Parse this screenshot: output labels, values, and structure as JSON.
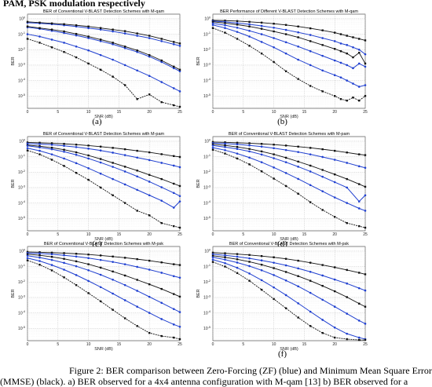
{
  "header": "PAM, PSK modulation respectively",
  "caption": {
    "line1": "Figure 2: BER comparison between Zero-Forcing (ZF) (blue) and Minimum Mean Square Error",
    "line2": "(MMSE) (black). a) BER observed for a 4x4 antenna configuration with M-qam [13] b) BER observed for a"
  },
  "colors": {
    "zf": "#1f3fd0",
    "mmse": "#111111",
    "grid": "#b8b8b8"
  },
  "chart_data": [
    {
      "type": "line",
      "panel_label": "(a)",
      "title": "BER of Conventional V-BLAST Detection Schemes with M-qam",
      "xlabel": "SNR (dB)",
      "ylabel": "BER",
      "x_ticks": [
        "0",
        "5",
        "10",
        "15",
        "20",
        "25"
      ],
      "y_ticks": [
        "10^0",
        "10^-1",
        "10^-2",
        "10^-3",
        "10^-4",
        "10^-5"
      ],
      "xlim": [
        0,
        25
      ],
      "ylim_log10": [
        -5.8,
        0.3
      ],
      "y_scale": "log",
      "grid": true,
      "x": [
        0,
        2,
        4,
        6,
        8,
        10,
        12,
        14,
        16,
        18,
        20,
        22,
        24,
        25
      ],
      "series": [
        {
          "color": "zf",
          "marker": "dot",
          "log10_values": [
            -0.25,
            -0.3,
            -0.35,
            -0.42,
            -0.5,
            -0.6,
            -0.7,
            -0.82,
            -0.95,
            -1.1,
            -1.25,
            -1.45,
            -1.65,
            -1.75
          ]
        },
        {
          "color": "mmse",
          "marker": "x",
          "log10_values": [
            -0.2,
            -0.25,
            -0.3,
            -0.35,
            -0.42,
            -0.5,
            -0.6,
            -0.7,
            -0.8,
            -0.95,
            -1.1,
            -1.3,
            -1.5,
            -1.6
          ]
        },
        {
          "color": "zf",
          "marker": "dot",
          "log10_values": [
            -0.55,
            -0.65,
            -0.78,
            -0.92,
            -1.08,
            -1.25,
            -1.45,
            -1.65,
            -1.9,
            -2.15,
            -2.45,
            -2.8,
            -3.2,
            -3.4
          ]
        },
        {
          "color": "mmse",
          "marker": "x",
          "log10_values": [
            -0.5,
            -0.6,
            -0.7,
            -0.82,
            -0.98,
            -1.15,
            -1.35,
            -1.55,
            -1.8,
            -2.05,
            -2.35,
            -2.7,
            -3.1,
            -3.3
          ]
        },
        {
          "color": "zf",
          "marker": "dot",
          "log10_values": [
            -1.0,
            -1.15,
            -1.35,
            -1.55,
            -1.8,
            -2.05,
            -2.35,
            -2.65,
            -3.0,
            -3.35,
            -3.7,
            -4.1,
            -4.5,
            -4.7
          ]
        },
        {
          "color": "mmse",
          "marker": "x",
          "log10_values": [
            -1.3,
            -1.55,
            -1.85,
            -2.15,
            -2.5,
            -2.9,
            -3.3,
            -3.75,
            -4.3,
            -5.2,
            -4.9,
            -5.4,
            -5.6,
            -5.7
          ]
        }
      ]
    },
    {
      "type": "line",
      "panel_label": "(b)",
      "title": "BER Performance of Different V-BLAST Detection Schemes with M-qam",
      "xlabel": "SNR (dB)",
      "ylabel": "BER",
      "x_ticks": [
        "0",
        "5",
        "10",
        "15",
        "20",
        "25"
      ],
      "y_ticks": [
        "10^0",
        "10^-1",
        "10^-2",
        "10^-3",
        "10^-4",
        "10^-5"
      ],
      "xlim": [
        0,
        25
      ],
      "ylim_log10": [
        -5.8,
        0.3
      ],
      "y_scale": "log",
      "grid": true,
      "x": [
        0,
        2,
        4,
        6,
        8,
        10,
        12,
        14,
        16,
        18,
        20,
        21,
        22,
        23,
        24,
        25
      ],
      "series": [
        {
          "color": "mmse",
          "marker": "x",
          "log10_values": [
            -0.1,
            -0.12,
            -0.15,
            -0.2,
            -0.25,
            -0.32,
            -0.4,
            -0.5,
            -0.62,
            -0.75,
            -0.9,
            -1.0,
            -1.1,
            -1.2,
            -1.3,
            -1.4
          ]
        },
        {
          "color": "zf",
          "marker": "dot",
          "log10_values": [
            -0.15,
            -0.2,
            -0.28,
            -0.36,
            -0.46,
            -0.58,
            -0.72,
            -0.88,
            -1.05,
            -1.25,
            -1.45,
            -1.6,
            -1.7,
            -1.85,
            -2.0,
            -2.3
          ]
        },
        {
          "color": "mmse",
          "marker": "x",
          "log10_values": [
            -0.2,
            -0.28,
            -0.38,
            -0.5,
            -0.65,
            -0.82,
            -1.0,
            -1.2,
            -1.45,
            -1.7,
            -1.95,
            -2.1,
            -2.25,
            -2.5,
            -2.2,
            -2.9
          ]
        },
        {
          "color": "zf",
          "marker": "dot",
          "log10_values": [
            -0.3,
            -0.42,
            -0.58,
            -0.78,
            -1.0,
            -1.25,
            -1.52,
            -1.8,
            -2.1,
            -2.4,
            -2.7,
            -2.85,
            -3.0,
            -3.2,
            -2.9,
            -3.1
          ]
        },
        {
          "color": "zf",
          "marker": "dot",
          "log10_values": [
            -0.4,
            -0.6,
            -0.85,
            -1.15,
            -1.5,
            -1.85,
            -2.25,
            -2.65,
            -3.0,
            -3.35,
            -3.65,
            -3.8,
            -4.0,
            -4.2,
            -4.4,
            -4.3
          ]
        },
        {
          "color": "mmse",
          "marker": "x",
          "log10_values": [
            -0.6,
            -0.9,
            -1.3,
            -1.75,
            -2.25,
            -2.8,
            -3.4,
            -3.9,
            -4.35,
            -4.7,
            -5.0,
            -5.2,
            -5.3,
            -5.1,
            -5.3,
            -5.0
          ]
        }
      ]
    },
    {
      "type": "line",
      "panel_label": "(c)",
      "title": "BER of Conventional V-BLAST Detection Schemes with M-pam",
      "xlabel": "SNR (dB)",
      "ylabel": "BER",
      "x_ticks": [
        "0",
        "5",
        "10",
        "15",
        "20",
        "25"
      ],
      "y_ticks": [
        "10^0",
        "10^-1",
        "10^-2",
        "10^-3",
        "10^-4",
        "10^-5"
      ],
      "xlim": [
        0,
        25
      ],
      "ylim_log10": [
        -5.8,
        0.3
      ],
      "y_scale": "log",
      "grid": true,
      "x": [
        0,
        2,
        4,
        6,
        8,
        10,
        12,
        14,
        16,
        18,
        20,
        22,
        24,
        25
      ],
      "series": [
        {
          "color": "mmse",
          "marker": "x",
          "log10_values": [
            -0.08,
            -0.1,
            -0.13,
            -0.17,
            -0.22,
            -0.28,
            -0.35,
            -0.43,
            -0.52,
            -0.62,
            -0.72,
            -0.84,
            -0.96,
            -1.02
          ]
        },
        {
          "color": "zf",
          "marker": "dot",
          "log10_values": [
            -0.15,
            -0.18,
            -0.23,
            -0.3,
            -0.38,
            -0.48,
            -0.6,
            -0.74,
            -0.9,
            -1.06,
            -1.22,
            -1.4,
            -1.58,
            -1.68
          ]
        },
        {
          "color": "mmse",
          "marker": "x",
          "log10_values": [
            -0.25,
            -0.32,
            -0.42,
            -0.55,
            -0.72,
            -0.92,
            -1.15,
            -1.4,
            -1.65,
            -1.9,
            -2.18,
            -2.45,
            -2.75,
            -2.9
          ]
        },
        {
          "color": "zf",
          "marker": "dot",
          "log10_values": [
            -0.3,
            -0.4,
            -0.52,
            -0.68,
            -0.88,
            -1.12,
            -1.38,
            -1.66,
            -1.96,
            -2.28,
            -2.62,
            -2.98,
            -3.35,
            -3.55
          ]
        },
        {
          "color": "zf",
          "marker": "dot",
          "log10_values": [
            -0.45,
            -0.62,
            -0.85,
            -1.12,
            -1.42,
            -1.75,
            -2.1,
            -2.45,
            -2.8,
            -3.15,
            -3.5,
            -3.85,
            -4.3,
            -3.9
          ]
        },
        {
          "color": "mmse",
          "marker": "x",
          "log10_values": [
            -0.6,
            -0.85,
            -1.2,
            -1.6,
            -2.05,
            -2.5,
            -3.0,
            -3.5,
            -4.0,
            -4.5,
            -4.8,
            -5.3,
            -5.5,
            -5.6
          ]
        }
      ]
    },
    {
      "type": "line",
      "panel_label": "(d)",
      "title": "BER of Conventional V-BLAST Detection Schemes with M-pam",
      "xlabel": "SNR (dB)",
      "ylabel": "BER",
      "x_ticks": [
        "0",
        "5",
        "10",
        "15",
        "20",
        "25"
      ],
      "y_ticks": [
        "10^0",
        "10^-1",
        "10^-2",
        "10^-3",
        "10^-4",
        "10^-5"
      ],
      "xlim": [
        0,
        25
      ],
      "ylim_log10": [
        -5.8,
        0.3
      ],
      "y_scale": "log",
      "grid": true,
      "x": [
        0,
        2,
        4,
        6,
        8,
        10,
        12,
        14,
        16,
        18,
        20,
        22,
        24,
        25
      ],
      "series": [
        {
          "color": "mmse",
          "marker": "x",
          "log10_values": [
            -0.05,
            -0.07,
            -0.1,
            -0.13,
            -0.17,
            -0.22,
            -0.28,
            -0.35,
            -0.43,
            -0.52,
            -0.62,
            -0.73,
            -0.85,
            -0.9
          ]
        },
        {
          "color": "zf",
          "marker": "dot",
          "log10_values": [
            -0.12,
            -0.15,
            -0.2,
            -0.27,
            -0.35,
            -0.45,
            -0.57,
            -0.7,
            -0.85,
            -1.02,
            -1.2,
            -1.4,
            -1.62,
            -1.72
          ]
        },
        {
          "color": "mmse",
          "marker": "x",
          "log10_values": [
            -0.2,
            -0.27,
            -0.37,
            -0.5,
            -0.66,
            -0.85,
            -1.07,
            -1.32,
            -1.58,
            -1.86,
            -2.15,
            -2.45,
            -2.78,
            -2.95
          ]
        },
        {
          "color": "zf",
          "marker": "dot",
          "log10_values": [
            -0.28,
            -0.38,
            -0.5,
            -0.66,
            -0.86,
            -1.1,
            -1.36,
            -1.65,
            -1.96,
            -2.3,
            -2.65,
            -3.0,
            -3.9,
            -3.5
          ]
        },
        {
          "color": "zf",
          "marker": "dot",
          "log10_values": [
            -0.42,
            -0.58,
            -0.8,
            -1.06,
            -1.36,
            -1.7,
            -2.06,
            -2.44,
            -2.84,
            -3.24,
            -3.64,
            -4.0,
            -4.35,
            -4.5
          ]
        },
        {
          "color": "mmse",
          "marker": "x",
          "log10_values": [
            -0.55,
            -0.8,
            -1.12,
            -1.5,
            -1.95,
            -2.42,
            -2.9,
            -3.4,
            -3.95,
            -4.45,
            -4.9,
            -5.3,
            -5.5,
            -5.6
          ]
        }
      ]
    },
    {
      "type": "line",
      "panel_label": "",
      "title": "BER of Conventional V-BLAST Detection Schemes with M-psk",
      "xlabel": "SNR (dB)",
      "ylabel": "BER",
      "x_ticks": [
        "0",
        "5",
        "10",
        "15",
        "20",
        "25"
      ],
      "y_ticks": [
        "10^0",
        "10^-1",
        "10^-2",
        "10^-3",
        "10^-4",
        "10^-5"
      ],
      "xlim": [
        0,
        25
      ],
      "ylim_log10": [
        -5.8,
        0.3
      ],
      "y_scale": "log",
      "grid": true,
      "x": [
        0,
        2,
        4,
        6,
        8,
        10,
        12,
        14,
        16,
        18,
        20,
        22,
        24,
        25
      ],
      "series": [
        {
          "color": "mmse",
          "marker": "x",
          "log10_values": [
            -0.05,
            -0.07,
            -0.1,
            -0.13,
            -0.17,
            -0.22,
            -0.28,
            -0.35,
            -0.43,
            -0.52,
            -0.62,
            -0.73,
            -0.85,
            -0.9
          ]
        },
        {
          "color": "zf",
          "marker": "dot",
          "log10_values": [
            -0.12,
            -0.15,
            -0.2,
            -0.27,
            -0.35,
            -0.45,
            -0.57,
            -0.7,
            -0.85,
            -1.02,
            -1.2,
            -1.4,
            -1.62,
            -1.72
          ]
        },
        {
          "color": "mmse",
          "marker": "x",
          "log10_values": [
            -0.2,
            -0.27,
            -0.37,
            -0.5,
            -0.66,
            -0.85,
            -1.07,
            -1.32,
            -1.58,
            -1.86,
            -2.15,
            -2.45,
            -2.78,
            -2.95
          ]
        },
        {
          "color": "zf",
          "marker": "dot",
          "log10_values": [
            -0.3,
            -0.42,
            -0.57,
            -0.76,
            -0.98,
            -1.24,
            -1.53,
            -1.85,
            -2.2,
            -2.57,
            -2.96,
            -3.35,
            -3.75,
            -3.95
          ]
        },
        {
          "color": "zf",
          "marker": "dot",
          "log10_values": [
            -0.45,
            -0.64,
            -0.9,
            -1.2,
            -1.55,
            -1.93,
            -2.33,
            -2.75,
            -3.18,
            -3.6,
            -4.0,
            -4.4,
            -4.75,
            -4.9
          ]
        },
        {
          "color": "mmse",
          "marker": "x",
          "log10_values": [
            -0.6,
            -0.88,
            -1.25,
            -1.7,
            -2.2,
            -2.72,
            -3.25,
            -3.8,
            -4.35,
            -4.85,
            -5.3,
            -5.5,
            -5.6,
            -5.7
          ]
        }
      ]
    },
    {
      "type": "line",
      "panel_label": "(f)",
      "title": "BER of Conventional V-BLAST Detection Schemes with M-psk",
      "xlabel": "SNR (dB)",
      "ylabel": "BER",
      "x_ticks": [
        "0",
        "5",
        "10",
        "15",
        "20",
        "25"
      ],
      "y_ticks": [
        "10^0",
        "10^-1",
        "10^-2",
        "10^-3",
        "10^-4",
        "10^-5"
      ],
      "xlim": [
        0,
        25
      ],
      "ylim_log10": [
        -5.8,
        0.3
      ],
      "y_scale": "log",
      "grid": true,
      "x": [
        0,
        2,
        4,
        6,
        8,
        10,
        12,
        14,
        16,
        18,
        20,
        22,
        24,
        25
      ],
      "series": [
        {
          "color": "mmse",
          "marker": "x",
          "log10_values": [
            -0.1,
            -0.14,
            -0.19,
            -0.25,
            -0.32,
            -0.4,
            -0.5,
            -0.62,
            -0.75,
            -0.9,
            -1.05,
            -1.22,
            -1.4,
            -1.5
          ]
        },
        {
          "color": "zf",
          "marker": "dot",
          "log10_values": [
            -0.2,
            -0.27,
            -0.36,
            -0.47,
            -0.6,
            -0.75,
            -0.92,
            -1.12,
            -1.34,
            -1.58,
            -1.84,
            -2.1,
            -2.4,
            -2.55
          ]
        },
        {
          "color": "mmse",
          "marker": "x",
          "log10_values": [
            -0.3,
            -0.4,
            -0.53,
            -0.69,
            -0.88,
            -1.1,
            -1.35,
            -1.62,
            -1.92,
            -2.25,
            -2.6,
            -2.98,
            -3.4,
            -3.6
          ]
        },
        {
          "color": "zf",
          "marker": "dot",
          "log10_values": [
            -0.4,
            -0.55,
            -0.74,
            -0.97,
            -1.24,
            -1.55,
            -1.9,
            -2.28,
            -2.7,
            -3.15,
            -3.6,
            -4.05,
            -4.5,
            -4.7
          ]
        },
        {
          "color": "zf",
          "marker": "dot",
          "log10_values": [
            -0.55,
            -0.78,
            -1.08,
            -1.45,
            -1.88,
            -2.35,
            -2.85,
            -3.38,
            -3.92,
            -4.45,
            -4.95,
            -5.35,
            -5.6,
            -5.7
          ]
        },
        {
          "color": "mmse",
          "marker": "x",
          "log10_values": [
            -0.7,
            -1.0,
            -1.42,
            -1.92,
            -2.5,
            -3.1,
            -3.7,
            -4.3,
            -4.85,
            -5.3,
            -5.6,
            -5.7,
            -5.75,
            -5.75
          ]
        }
      ]
    }
  ]
}
